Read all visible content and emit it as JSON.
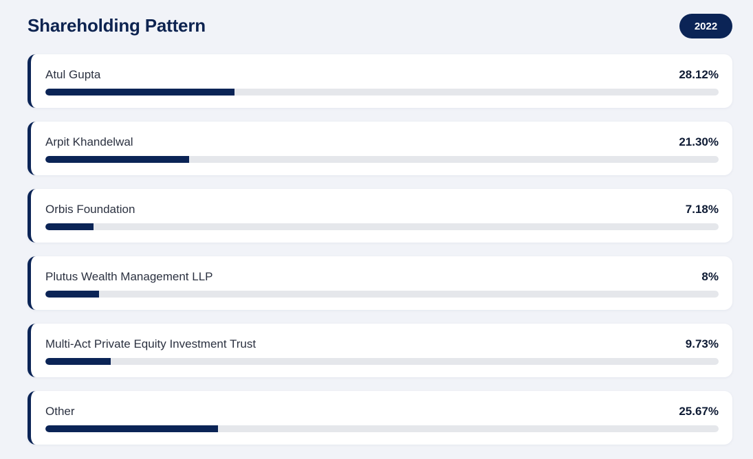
{
  "header": {
    "title": "Shareholding Pattern",
    "year": "2022"
  },
  "colors": {
    "accent": "#0b2456",
    "track": "#e5e7eb",
    "background": "#f1f3f8"
  },
  "shareholders": [
    {
      "name": "Atul Gupta",
      "percent_label": "28.12%",
      "percent": 28.12
    },
    {
      "name": "Arpit Khandelwal",
      "percent_label": "21.30%",
      "percent": 21.3
    },
    {
      "name": "Orbis Foundation",
      "percent_label": "7.18%",
      "percent": 7.18
    },
    {
      "name": "Plutus Wealth Management LLP",
      "percent_label": "8%",
      "percent": 8
    },
    {
      "name": "Multi-Act Private Equity Investment Trust",
      "percent_label": "9.73%",
      "percent": 9.73
    },
    {
      "name": "Other",
      "percent_label": "25.67%",
      "percent": 25.67
    }
  ]
}
